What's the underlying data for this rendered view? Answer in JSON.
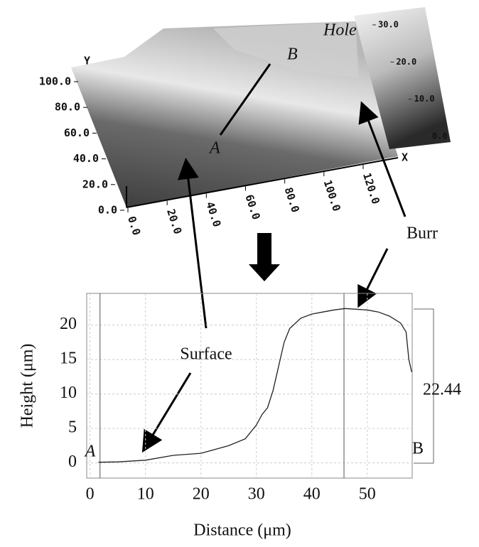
{
  "chart_data": [
    {
      "type": "surface3d",
      "xlabel": "X",
      "ylabel": "Y",
      "xticks": [
        {
          "value": 0,
          "label": "0.0"
        },
        {
          "value": 20,
          "label": "20.0"
        },
        {
          "value": 40,
          "label": "40.0"
        },
        {
          "value": 60,
          "label": "60.0"
        },
        {
          "value": 80,
          "label": "80.0"
        },
        {
          "value": 100,
          "label": "100.0"
        },
        {
          "value": 120,
          "label": "120.0"
        }
      ],
      "yticks": [
        {
          "value": 0,
          "label": "0.0"
        },
        {
          "value": 20,
          "label": "20.0"
        },
        {
          "value": 40,
          "label": "40.0"
        },
        {
          "value": 60,
          "label": "60.0"
        },
        {
          "value": 80,
          "label": "80.0"
        },
        {
          "value": 100,
          "label": "100.0"
        }
      ],
      "colorbar_ticks": [
        {
          "value": 0,
          "label": "0.0"
        },
        {
          "value": 10,
          "label": "10.0"
        },
        {
          "value": 20,
          "label": "20.0"
        },
        {
          "value": 30,
          "label": "30.0"
        }
      ],
      "annotations": [
        "Hole",
        "A",
        "B",
        "Burr"
      ]
    },
    {
      "type": "line",
      "xlabel": "Distance (μm)",
      "ylabel": "Height (μm)",
      "x": [
        1.5,
        5,
        10,
        15,
        20,
        25,
        28,
        30,
        31,
        32,
        33,
        34,
        35,
        36,
        38,
        40,
        42,
        44,
        46,
        48,
        50,
        52,
        54,
        56,
        57,
        57.5,
        58
      ],
      "series": [
        {
          "color": "#222222",
          "values": [
            0.1,
            0.15,
            0.4,
            1.1,
            1.4,
            2.5,
            3.5,
            5.5,
            7,
            8,
            10.5,
            14,
            17.5,
            19.5,
            21,
            21.6,
            21.9,
            22.2,
            22.4,
            22.3,
            22.2,
            21.9,
            21.3,
            20.3,
            19,
            15,
            13.2
          ]
        }
      ],
      "xlim": [
        -0.6,
        58.1
      ],
      "ylim": [
        -2.2,
        24.6
      ],
      "xticks": [
        0,
        10,
        20,
        30,
        40,
        50
      ],
      "yticks": [
        0,
        5,
        10,
        15,
        20
      ],
      "grid": true,
      "cursors": [
        1.8,
        45.8
      ],
      "annotations": [
        "A",
        "B",
        "22.44",
        "Surface"
      ]
    }
  ]
}
